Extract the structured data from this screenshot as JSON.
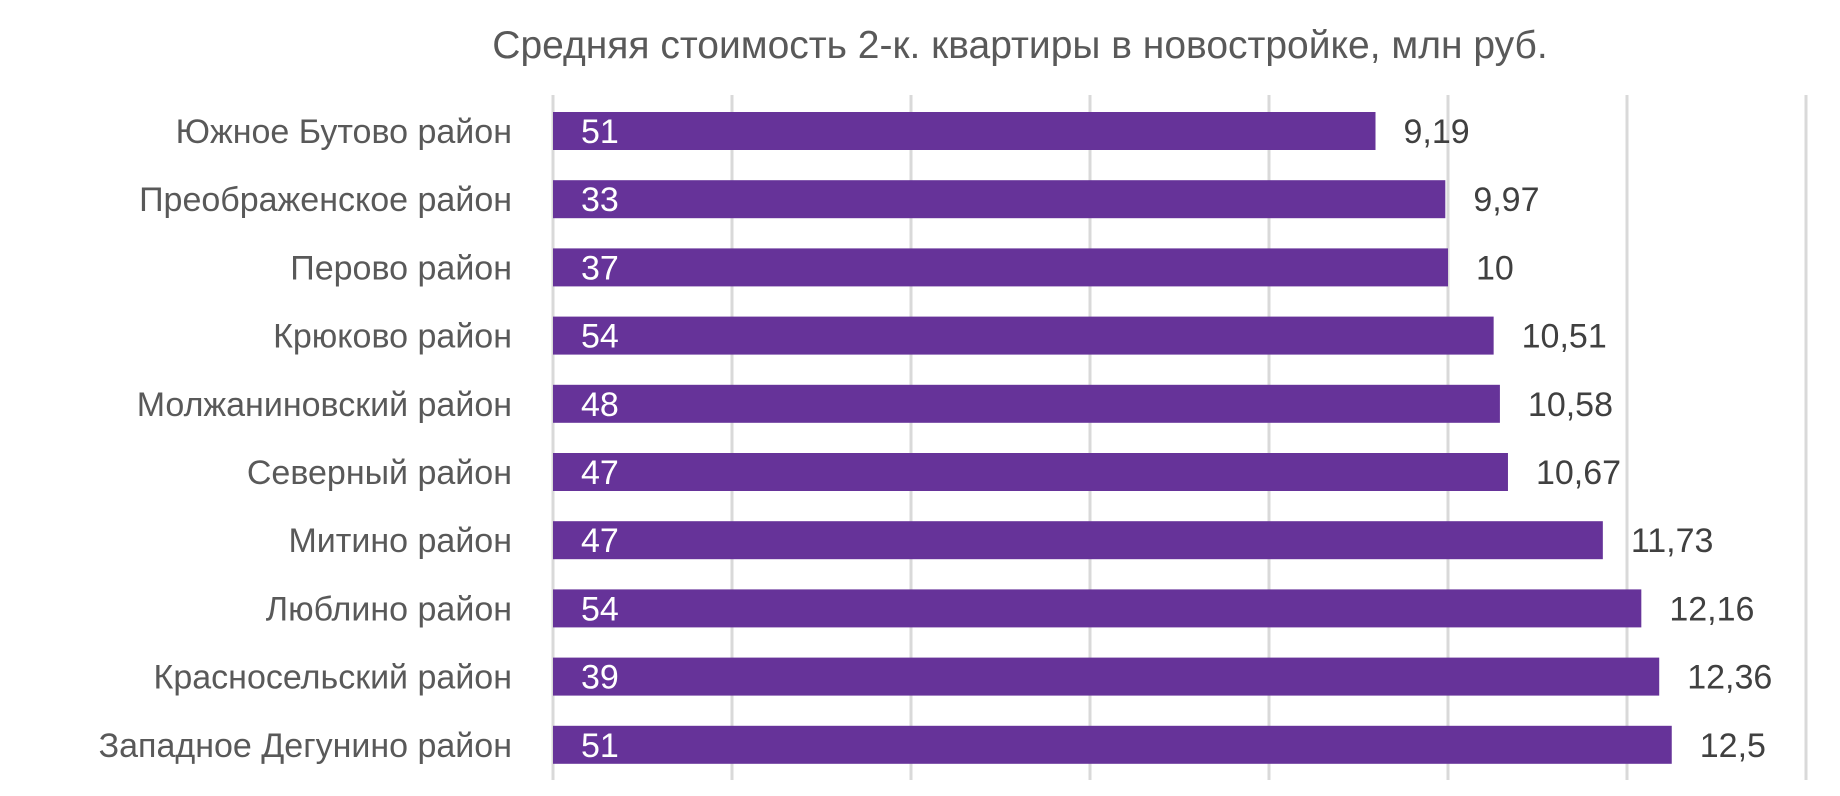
{
  "chart_data": {
    "type": "bar",
    "orientation": "horizontal",
    "title": "Средняя стоимость 2-к. квартиры в новостройке, млн руб.",
    "xlabel": "",
    "ylabel": "",
    "categories": [
      "Южное Бутово район",
      "Преображенское район",
      "Перово район",
      "Крюково район",
      "Молжаниновский район",
      "Северный район",
      "Митино район",
      "Люблино район",
      "Красносельский район",
      "Западное Дегунино район"
    ],
    "values": [
      9.19,
      9.97,
      10,
      10.51,
      10.58,
      10.67,
      11.73,
      12.16,
      12.36,
      12.5
    ],
    "value_labels": [
      "9,19",
      "9,97",
      "10",
      "10,51",
      "10,58",
      "10,67",
      "11,73",
      "12,16",
      "12,36",
      "12,5"
    ],
    "inner_labels": [
      "51",
      "33",
      "37",
      "54",
      "48",
      "47",
      "47",
      "54",
      "39",
      "51"
    ],
    "xlim": [
      0,
      14
    ],
    "x_gridlines": [
      0,
      2,
      4,
      6,
      8,
      10,
      12,
      14
    ],
    "grid": true,
    "legend": "none",
    "colors": {
      "bar": "#663399",
      "gridline": "#d9d9d9",
      "text": "#595959"
    }
  }
}
